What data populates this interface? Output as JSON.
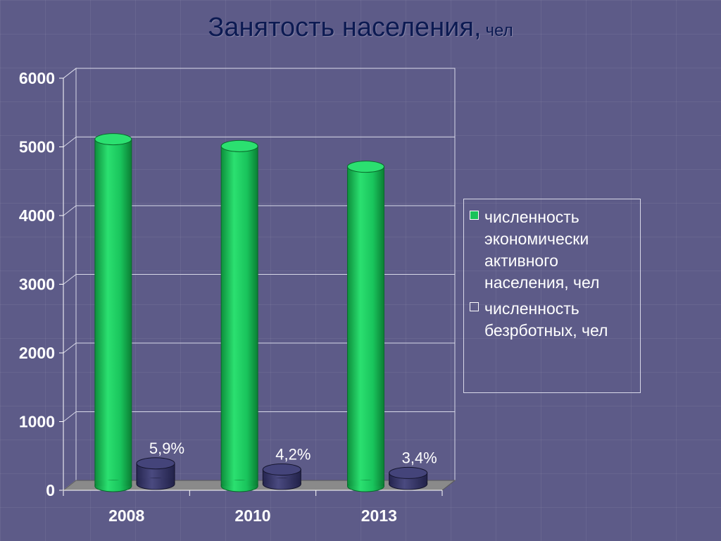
{
  "title": "Занятость населения,",
  "title_unit": "чел",
  "chart_data": {
    "type": "bar",
    "categories": [
      "2008",
      "2010",
      "2013"
    ],
    "series": [
      {
        "name": "численность экономически активного населения, чел",
        "values": [
          5050,
          4950,
          4650
        ],
        "color": "#18c25a"
      },
      {
        "name": "численность безрботных, чел",
        "values": [
          300,
          210,
          160
        ],
        "color": "#3a3a6c",
        "data_labels": [
          "5,9%",
          "4,2%",
          "3,4%"
        ]
      }
    ],
    "yticks": [
      "0",
      "1000",
      "2000",
      "3000",
      "4000",
      "5000",
      "6000"
    ],
    "ylim": [
      0,
      6000
    ],
    "grid": true,
    "legend": "right"
  }
}
